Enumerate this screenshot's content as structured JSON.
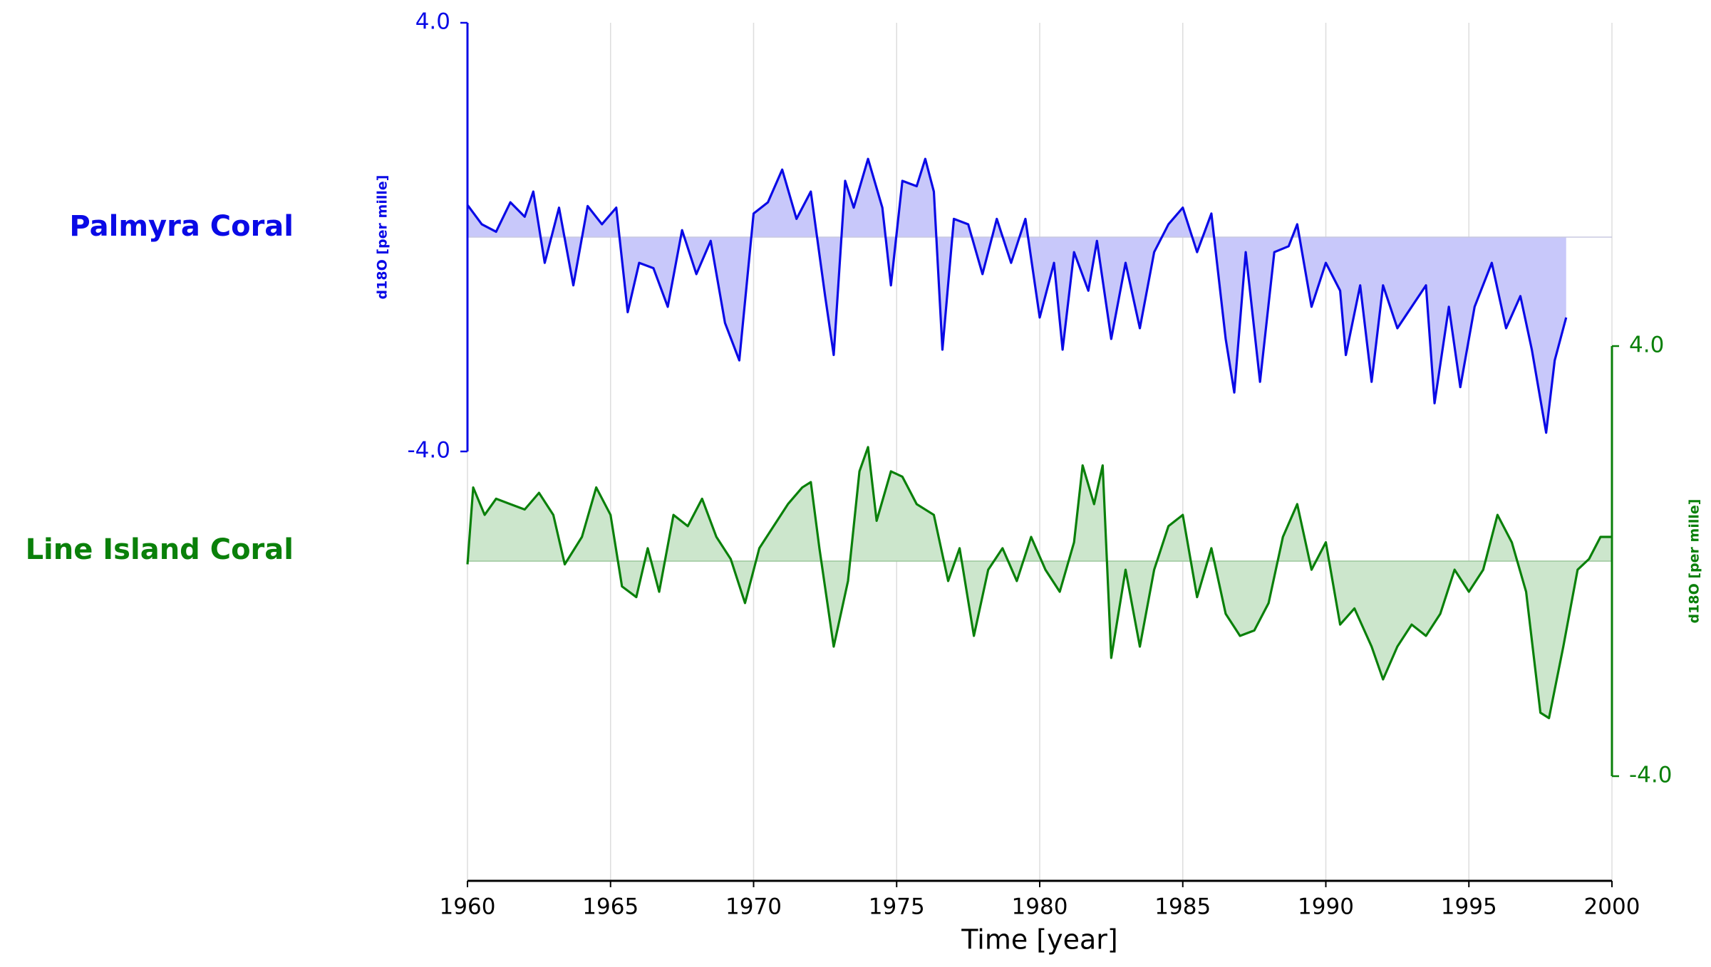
{
  "chart_data": {
    "type": "line",
    "xlabel": "Time [year]",
    "xlim": [
      1960,
      2000
    ],
    "xticks": [
      1960,
      1965,
      1970,
      1975,
      1980,
      1985,
      1990,
      1995,
      2000
    ],
    "grid": true,
    "series": [
      {
        "name": "Palmyra Coral",
        "color": "#0a0ae6",
        "fill": "#c8c8fa",
        "axis": "y",
        "ylabel": "d18O [per mille]",
        "ylim": [
          -4,
          4
        ],
        "yticks": [
          {
            "value": -4,
            "label": "-4.0"
          },
          {
            "value": 4,
            "label": "4.0"
          }
        ],
        "x": [
          1960.0,
          1960.5,
          1961.0,
          1961.5,
          1962.0,
          1962.3,
          1962.7,
          1963.2,
          1963.7,
          1964.2,
          1964.7,
          1965.2,
          1965.6,
          1966.0,
          1966.5,
          1967.0,
          1967.5,
          1968.0,
          1968.5,
          1969.0,
          1969.5,
          1970.0,
          1970.5,
          1971.0,
          1971.5,
          1972.0,
          1972.5,
          1972.8,
          1973.2,
          1973.5,
          1974.0,
          1974.5,
          1974.8,
          1975.2,
          1975.7,
          1976.0,
          1976.3,
          1976.6,
          1977.0,
          1977.5,
          1978.0,
          1978.5,
          1979.0,
          1979.5,
          1980.0,
          1980.5,
          1980.8,
          1981.2,
          1981.7,
          1982.0,
          1982.5,
          1983.0,
          1983.5,
          1984.0,
          1984.5,
          1985.0,
          1985.5,
          1986.0,
          1986.5,
          1986.8,
          1987.2,
          1987.7,
          1988.2,
          1988.7,
          1989.0,
          1989.5,
          1990.0,
          1990.5,
          1990.7,
          1991.2,
          1991.6,
          1992.0,
          1992.5,
          1993.0,
          1993.5,
          1993.8,
          1994.3,
          1994.7,
          1995.2,
          1995.8,
          1996.3,
          1996.8,
          1997.2,
          1997.7,
          1998.0,
          1998.4
        ],
        "values": [
          0.6,
          0.24,
          0.1,
          0.65,
          0.38,
          0.85,
          -0.48,
          0.55,
          -0.9,
          0.58,
          0.24,
          0.55,
          -1.4,
          -0.48,
          -0.58,
          -1.3,
          0.13,
          -0.69,
          -0.07,
          -1.6,
          -2.3,
          0.44,
          0.65,
          1.26,
          0.34,
          0.85,
          -1.1,
          -2.2,
          1.05,
          0.55,
          1.46,
          0.55,
          -0.9,
          1.05,
          0.95,
          1.46,
          0.85,
          -2.1,
          0.34,
          0.24,
          -0.69,
          0.34,
          -0.48,
          0.34,
          -1.5,
          -0.48,
          -2.1,
          -0.28,
          -1.0,
          -0.07,
          -1.9,
          -0.48,
          -1.7,
          -0.28,
          0.24,
          0.55,
          -0.28,
          0.44,
          -1.9,
          -2.9,
          -0.28,
          -2.7,
          -0.28,
          -0.17,
          0.24,
          -1.3,
          -0.48,
          -1.0,
          -2.2,
          -0.9,
          -2.7,
          -0.9,
          -1.7,
          -1.3,
          -0.9,
          -3.1,
          -1.3,
          -2.8,
          -1.3,
          -0.48,
          -1.7,
          -1.1,
          -2.1,
          -3.65,
          -2.3,
          -1.5
        ]
      },
      {
        "name": "Line Island Coral",
        "color": "#0a800a",
        "fill": "#cce6cc",
        "axis": "y2",
        "ylabel": "d18O [per mille]",
        "ylim": [
          -4,
          4
        ],
        "yticks": [
          {
            "value": -4,
            "label": "-4.0"
          },
          {
            "value": 4,
            "label": "4.0"
          }
        ],
        "x": [
          1960.0,
          1960.2,
          1960.6,
          1961.0,
          1961.5,
          1962.0,
          1962.5,
          1963.0,
          1963.4,
          1964.0,
          1964.5,
          1965.0,
          1965.4,
          1965.9,
          1966.3,
          1966.7,
          1967.2,
          1967.7,
          1968.2,
          1968.7,
          1969.2,
          1969.7,
          1970.2,
          1970.7,
          1971.2,
          1971.7,
          1972.0,
          1972.3,
          1972.8,
          1973.3,
          1973.7,
          1974.0,
          1974.3,
          1974.8,
          1975.2,
          1975.7,
          1976.3,
          1976.8,
          1977.2,
          1977.7,
          1978.2,
          1978.7,
          1979.2,
          1979.7,
          1980.2,
          1980.7,
          1981.2,
          1981.5,
          1981.9,
          1982.2,
          1982.5,
          1983.0,
          1983.5,
          1984.0,
          1984.5,
          1985.0,
          1985.5,
          1986.0,
          1986.5,
          1987.0,
          1987.5,
          1988.0,
          1988.5,
          1989.0,
          1989.5,
          1990.0,
          1990.5,
          1991.0,
          1991.6,
          1992.0,
          1992.5,
          1993.0,
          1993.5,
          1994.0,
          1994.5,
          1995.0,
          1995.5,
          1996.0,
          1996.5,
          1997.0,
          1997.5,
          1997.8,
          1998.3,
          1998.8,
          1999.2,
          1999.6,
          2000.0
        ],
        "values": [
          -0.06,
          1.37,
          0.86,
          1.16,
          1.06,
          0.96,
          1.27,
          0.86,
          -0.06,
          0.45,
          1.37,
          0.86,
          -0.47,
          -0.67,
          0.24,
          -0.57,
          0.86,
          0.65,
          1.16,
          0.45,
          0.04,
          -0.78,
          0.24,
          0.65,
          1.06,
          1.37,
          1.47,
          0.24,
          -1.59,
          -0.37,
          1.67,
          2.12,
          0.75,
          1.67,
          1.57,
          1.06,
          0.86,
          -0.37,
          0.24,
          -1.39,
          -0.16,
          0.24,
          -0.37,
          0.45,
          -0.16,
          -0.57,
          0.35,
          1.78,
          1.06,
          1.78,
          -1.8,
          -0.16,
          -1.59,
          -0.16,
          0.65,
          0.86,
          -0.67,
          0.24,
          -0.98,
          -1.39,
          -1.29,
          -0.78,
          0.45,
          1.06,
          -0.16,
          0.35,
          -1.18,
          -0.88,
          -1.59,
          -2.2,
          -1.59,
          -1.18,
          -1.39,
          -0.98,
          -0.16,
          -0.57,
          -0.16,
          0.86,
          0.35,
          -0.57,
          -2.82,
          -2.92,
          -1.59,
          -0.16,
          0.04,
          0.45,
          0.45
        ]
      }
    ]
  }
}
